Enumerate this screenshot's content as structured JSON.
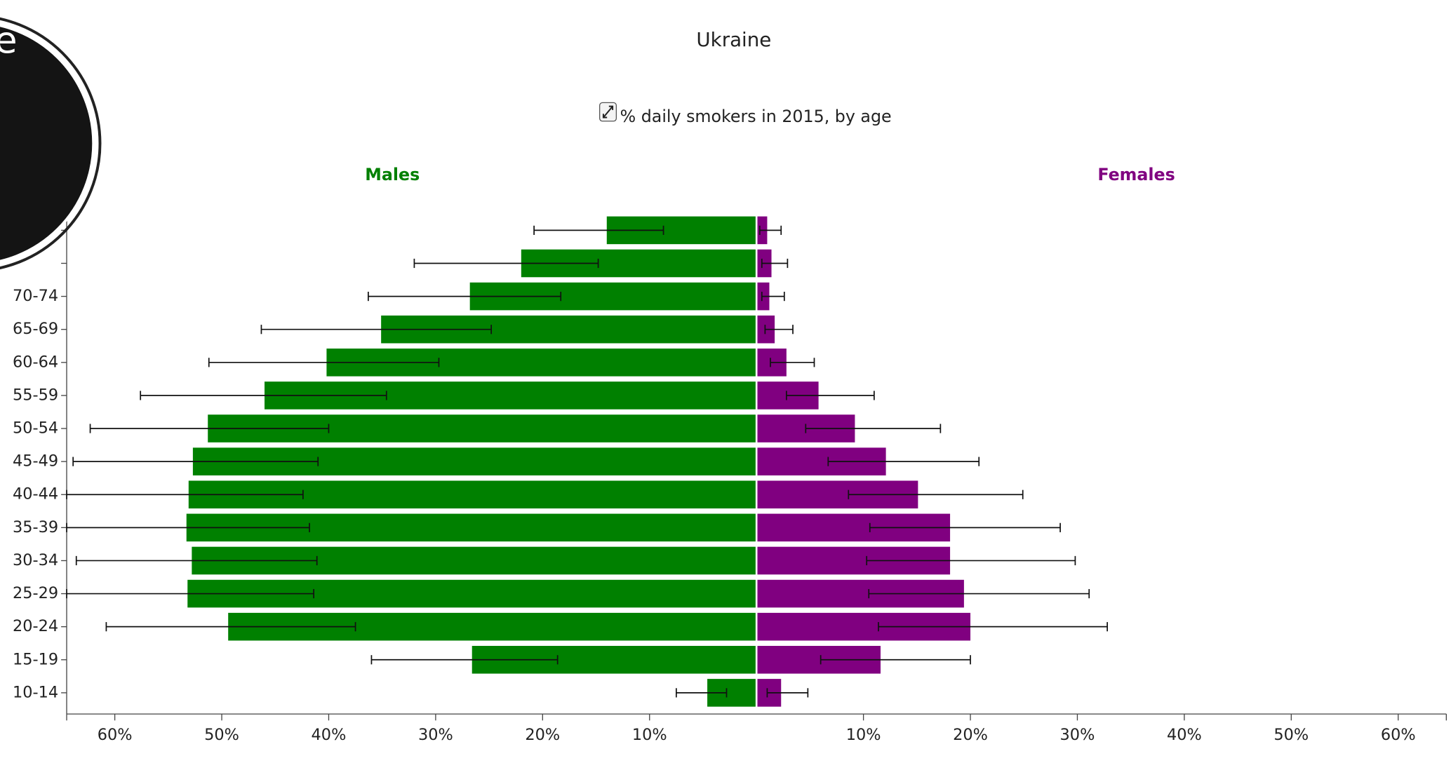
{
  "overlay_text": "e",
  "chart_data": {
    "type": "pyramid",
    "title": "Ukraine",
    "subtitle": "% daily smokers in 2015, by age",
    "categories": [
      null,
      null,
      "70-74",
      "65-69",
      "60-64",
      "55-59",
      "50-54",
      "45-49",
      "40-44",
      "35-39",
      "30-34",
      "25-29",
      "20-24",
      "15-19",
      "10-14"
    ],
    "series": [
      {
        "name": "Males",
        "color": "#008000",
        "side": "left",
        "values": [
          14.0,
          22.0,
          26.8,
          35.1,
          40.2,
          46.0,
          51.3,
          52.7,
          53.1,
          53.3,
          52.8,
          53.2,
          49.4,
          26.6,
          4.6
        ],
        "error_low": [
          8.7,
          14.8,
          18.3,
          24.8,
          29.7,
          34.6,
          40.0,
          41.0,
          42.4,
          41.8,
          41.1,
          41.4,
          37.5,
          18.6,
          2.8
        ],
        "error_high": [
          20.8,
          32.0,
          36.3,
          46.3,
          51.2,
          57.6,
          62.3,
          63.9,
          64.5,
          64.5,
          63.6,
          64.5,
          60.8,
          36.0,
          7.5
        ]
      },
      {
        "name": "Females",
        "color": "#800080",
        "side": "right",
        "values": [
          1.0,
          1.4,
          1.2,
          1.7,
          2.8,
          5.8,
          9.2,
          12.1,
          15.1,
          18.1,
          18.1,
          19.4,
          20.0,
          11.6,
          2.3
        ],
        "error_low": [
          0.3,
          0.5,
          0.5,
          0.8,
          1.3,
          2.8,
          4.6,
          6.7,
          8.6,
          10.6,
          10.3,
          10.5,
          11.4,
          6.0,
          1.0
        ],
        "error_high": [
          2.3,
          2.9,
          2.6,
          3.4,
          5.4,
          11.0,
          17.2,
          20.8,
          24.9,
          28.4,
          29.8,
          31.1,
          32.8,
          20.0,
          4.8
        ]
      }
    ],
    "xlim": [
      -64.5,
      64.5
    ],
    "xticks": [
      {
        "value": -60,
        "label": "60%"
      },
      {
        "value": -50,
        "label": "50%"
      },
      {
        "value": -40,
        "label": "40%"
      },
      {
        "value": -30,
        "label": "30%"
      },
      {
        "value": -20,
        "label": "20%"
      },
      {
        "value": -10,
        "label": "10%"
      },
      {
        "value": 10,
        "label": "10%"
      },
      {
        "value": 20,
        "label": "20%"
      },
      {
        "value": 30,
        "label": "30%"
      },
      {
        "value": 40,
        "label": "40%"
      },
      {
        "value": 50,
        "label": "50%"
      },
      {
        "value": 60,
        "label": "60%"
      }
    ]
  }
}
